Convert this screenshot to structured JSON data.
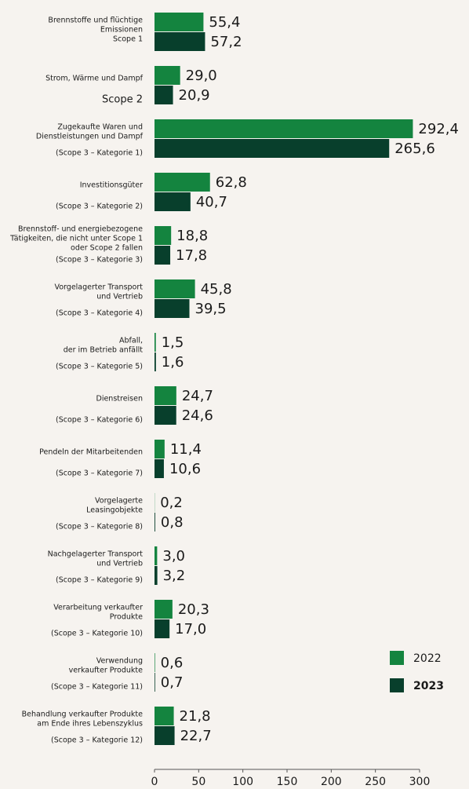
{
  "chart_data": {
    "type": "bar",
    "orientation": "horizontal",
    "categories": [
      [
        "Brennstoffe und flüchtige",
        "Emissionen",
        "Scope 1"
      ],
      [
        "Strom, Wärme und Dampf",
        "Scope 2"
      ],
      [
        "Zugekaufte Waren und",
        "Dienstleistungen und Dampf",
        "(Scope 3 – Kategorie 1)"
      ],
      [
        "Investitionsgüter",
        "(Scope 3 – Kategorie 2)"
      ],
      [
        "Brennstoff- und energiebezogene",
        "Tätigkeiten, die nicht unter Scope 1",
        "oder Scope 2 fallen",
        "(Scope 3 – Kategorie 3)"
      ],
      [
        "Vorgelagerter Transport",
        "und Vertrieb",
        "(Scope 3 – Kategorie 4)"
      ],
      [
        "Abfall,",
        "der im Betrieb anfällt",
        "(Scope 3 – Kategorie 5)"
      ],
      [
        "Dienstreisen",
        "(Scope 3 – Kategorie 6)"
      ],
      [
        "Pendeln der Mitarbeitenden",
        "(Scope 3 – Kategorie 7)"
      ],
      [
        "Vorgelagerte",
        "Leasingobjekte",
        "(Scope 3 – Kategorie 8)"
      ],
      [
        "Nachgelagerter Transport",
        "und Vertrieb",
        "(Scope 3 – Kategorie 9)"
      ],
      [
        "Verarbeitung verkaufter",
        "Produkte",
        "(Scope 3 – Kategorie 10)"
      ],
      [
        "Verwendung",
        "verkaufter Produkte",
        "(Scope 3 – Kategorie 11)"
      ],
      [
        "Behandlung verkaufter Produkte",
        "am Ende ihres Lebenszyklus",
        "(Scope 3 – Kategorie 12)"
      ]
    ],
    "series": [
      {
        "name": "2022",
        "color": "#14843f",
        "values": [
          55.4,
          29.0,
          292.4,
          62.8,
          18.8,
          45.8,
          1.5,
          24.7,
          11.4,
          0.2,
          3.0,
          20.3,
          0.6,
          21.8
        ],
        "value_labels": [
          "55,4",
          "29,0",
          "292,4",
          "62,8",
          "18,8",
          "45,8",
          "1,5",
          "24,7",
          "11,4",
          "0,2",
          "3,0",
          "20,3",
          "0,6",
          "21,8"
        ]
      },
      {
        "name": "2023",
        "color": "#083f2c",
        "values": [
          57.2,
          20.9,
          265.6,
          40.7,
          17.8,
          39.5,
          1.6,
          24.6,
          10.6,
          0.8,
          3.2,
          17.0,
          0.7,
          22.7
        ],
        "value_labels": [
          "57,2",
          "20,9",
          "265,6",
          "40,7",
          "17,8",
          "39,5",
          "1,6",
          "24,6",
          "10,6",
          "0,8",
          "3,2",
          "17,0",
          "0,7",
          "22,7"
        ]
      }
    ],
    "xlim": [
      0,
      300
    ],
    "xticks": [
      0,
      50,
      100,
      150,
      200,
      250,
      300
    ],
    "legend": "lower right"
  }
}
